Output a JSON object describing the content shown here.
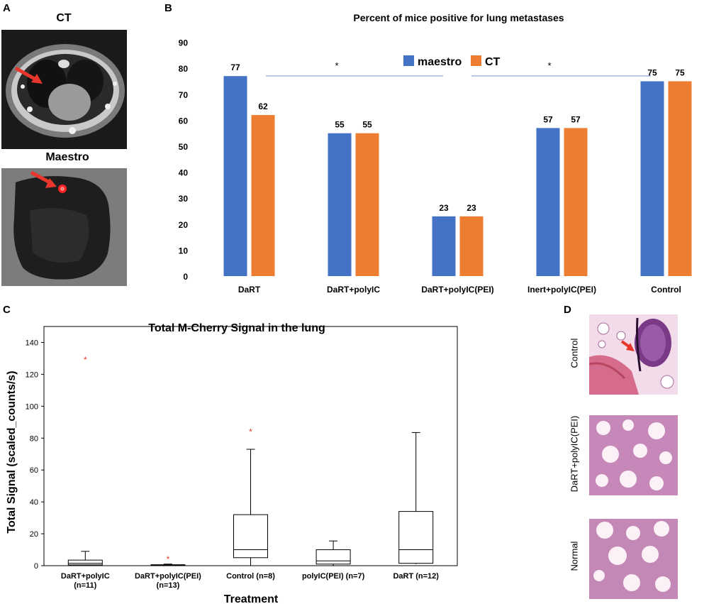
{
  "panels": {
    "a": {
      "letter": "A",
      "ct_label": "CT",
      "maestro_label": "Maestro"
    },
    "b": {
      "letter": "B"
    },
    "c": {
      "letter": "C"
    },
    "d": {
      "letter": "D",
      "labels": [
        "Control",
        "DaRT+polyIC(PEI)",
        "Normal"
      ]
    }
  },
  "colors": {
    "maestro": "#4472C4",
    "ct": "#ED7D31",
    "sig": "#8EA9DB",
    "outlier": "#E8362D"
  },
  "chart_data": [
    {
      "type": "bar",
      "title": "Percent of mice positive for lung metastases",
      "categories": [
        "DaRT",
        "DaRT+polyIC",
        "DaRT+polyIC(PEI)",
        "Inert+polyIC(PEI)",
        "Control"
      ],
      "series": [
        {
          "name": "maestro",
          "values": [
            77,
            55,
            23,
            57,
            75
          ]
        },
        {
          "name": "CT",
          "values": [
            62,
            55,
            23,
            57,
            75
          ]
        }
      ],
      "ylim": [
        0,
        90
      ],
      "yticks": [
        "0",
        "10",
        "20",
        "30",
        "40",
        "50",
        "60",
        "70",
        "80",
        "90"
      ],
      "legend": "top-center",
      "significance": [
        "*",
        "*"
      ],
      "xlabel": "",
      "ylabel": ""
    },
    {
      "type": "box",
      "title": "Total M-Cherry Signal in the lung",
      "xlabel": "Treatment",
      "ylabel": "Total Signal (scaled_counts/s)",
      "ylim": [
        0,
        150
      ],
      "yticks": [
        "0",
        "20",
        "40",
        "60",
        "80",
        "100",
        "120",
        "140"
      ],
      "categories": [
        {
          "line1": "DaRT+polyIC",
          "line2": "(n=11)"
        },
        {
          "line1": "DaRT+polyIC(PEI)",
          "line2": "(n=13)"
        },
        {
          "line1": "Control (n=8)",
          "line2": ""
        },
        {
          "line1": "polyIC(PEI) (n=7)",
          "line2": ""
        },
        {
          "line1": "DaRT (n=12)",
          "line2": ""
        }
      ],
      "boxes": [
        {
          "min": 0,
          "q1": 0.5,
          "median": 1.5,
          "q3": 3.5,
          "max": 9,
          "outliers": [
            129
          ]
        },
        {
          "min": 0,
          "q1": 0.1,
          "median": 0.3,
          "q3": 0.6,
          "max": 1,
          "outliers": [
            4
          ]
        },
        {
          "min": 0,
          "q1": 5,
          "median": 10,
          "q3": 32,
          "max": 73,
          "outliers": [
            84
          ]
        },
        {
          "min": 0,
          "q1": 1,
          "median": 3,
          "q3": 10,
          "max": 15.5,
          "outliers": []
        },
        {
          "min": 1,
          "q1": 1.5,
          "median": 10,
          "q3": 34,
          "max": 83.5,
          "outliers": []
        }
      ]
    }
  ]
}
